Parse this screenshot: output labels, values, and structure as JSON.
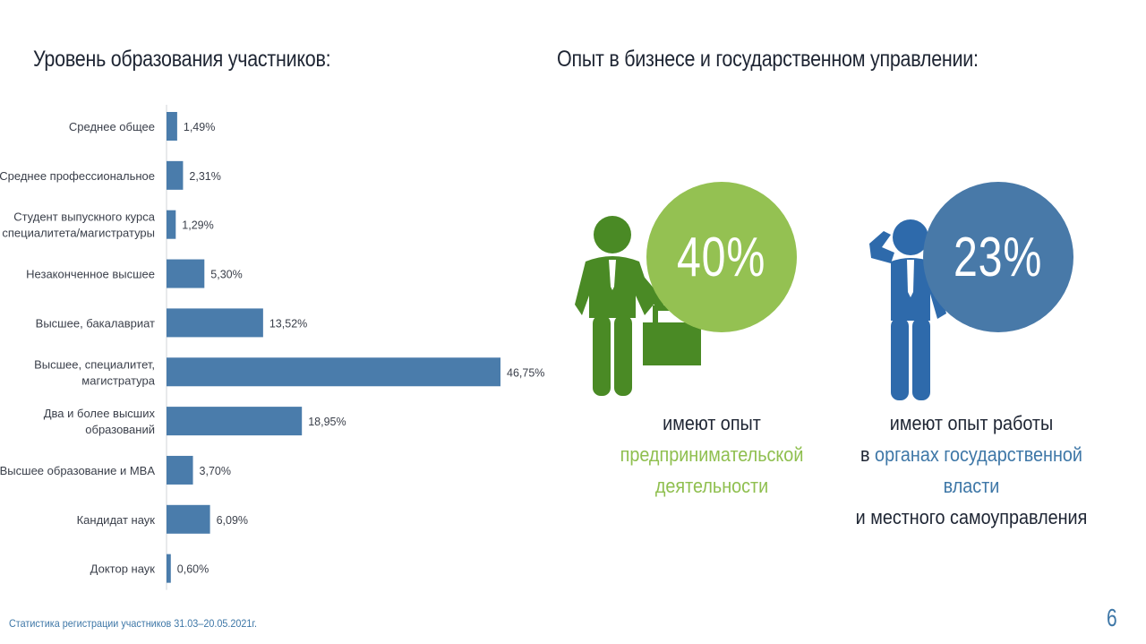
{
  "left_title": "Уровень образования участников:",
  "right_title": "Опыт в бизнесе и государственном управлении:",
  "chart_data": {
    "type": "bar",
    "orientation": "horizontal",
    "title": "Уровень образования участников:",
    "categories": [
      [
        "Среднее общее"
      ],
      [
        "Среднее профессиональное"
      ],
      [
        "Студент выпускного курса",
        "специалитета/магистратуры"
      ],
      [
        "Незаконченное высшее"
      ],
      [
        "Высшее, бакалавриат"
      ],
      [
        "Высшее, специалитет,",
        "магистратура"
      ],
      [
        "Два и более высших",
        "образований"
      ],
      [
        "Высшее образование и MBA"
      ],
      [
        "Кандидат наук"
      ],
      [
        "Доктор наук"
      ]
    ],
    "values": [
      1.49,
      2.31,
      1.29,
      5.3,
      13.52,
      46.75,
      18.95,
      3.7,
      6.09,
      0.6
    ],
    "value_labels": [
      "1,49%",
      "2,31%",
      "1,29%",
      "5,30%",
      "13,52%",
      "46,75%",
      "18,95%",
      "3,70%",
      "6,09%",
      "0,60%"
    ],
    "xlim": [
      0,
      46.75
    ],
    "color": "#4a7cab",
    "grid": false
  },
  "stats": {
    "business": {
      "percent": "40%",
      "line1": "имеют опыт",
      "line2": "предпринимательской",
      "line3": "деятельности",
      "color": "#94c152"
    },
    "government": {
      "percent": "23%",
      "line1": "имеют опыт работы",
      "line2_prefix": "в ",
      "line2_highlight": "органах государственной власти",
      "line3": "и местного самоуправления",
      "color": "#4879a8"
    }
  },
  "footer": "Статистика регистрации участников 31.03–20.05.2021г.",
  "page_number": "6",
  "icons": {
    "businessman": "businessman-with-briefcase-icon",
    "official": "official-thinking-icon"
  }
}
